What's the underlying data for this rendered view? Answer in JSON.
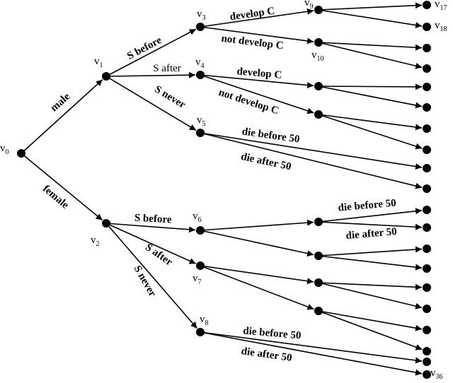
{
  "nodes": [
    {
      "base": "v",
      "sub": "0"
    },
    {
      "base": "v",
      "sub": "1"
    },
    {
      "base": "v",
      "sub": "2"
    },
    {
      "base": "v",
      "sub": "3"
    },
    {
      "base": "v",
      "sub": "4"
    },
    {
      "base": "v",
      "sub": "5"
    },
    {
      "base": "v",
      "sub": "6"
    },
    {
      "base": "v",
      "sub": "7"
    },
    {
      "base": "v",
      "sub": "8"
    },
    {
      "base": "v",
      "sub": "9"
    },
    {
      "base": "v",
      "sub": "10"
    },
    {
      "base": "v",
      "sub": "17"
    },
    {
      "base": "v",
      "sub": "18"
    },
    {
      "base": "v",
      "sub": "36"
    }
  ],
  "edge_labels": [
    "male",
    "female",
    "S before",
    "S after",
    "S never",
    "develop C",
    "not develop C",
    "develop C",
    "not develop C",
    "die before 50",
    "die after 50",
    "S before",
    "S after",
    "S never",
    "die before 50",
    "die after 50",
    "die before 50",
    "die after 50"
  ]
}
